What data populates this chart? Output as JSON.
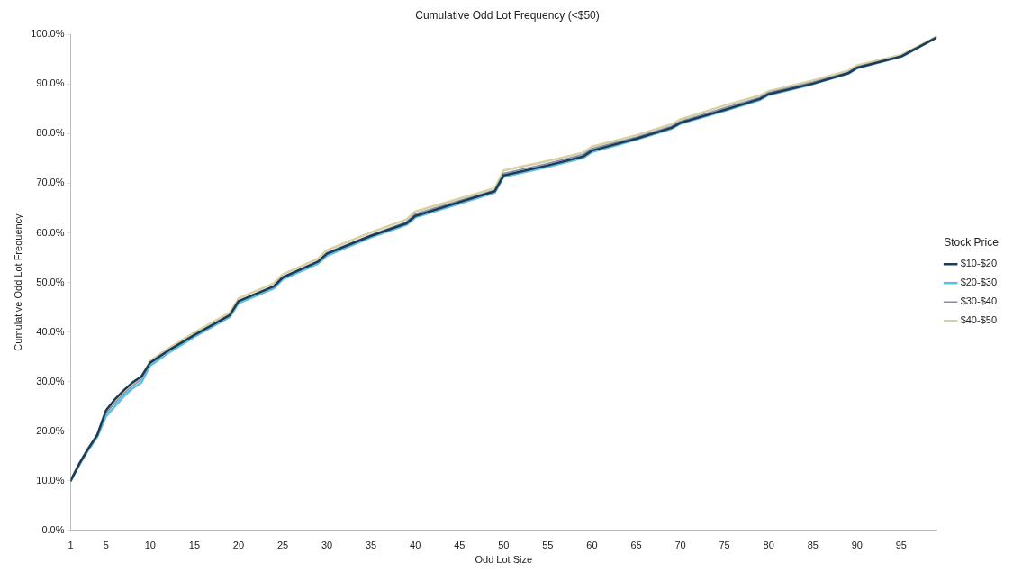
{
  "chart_data": {
    "type": "line",
    "title": "Cumulative Odd Lot Frequency (<$50)",
    "xlabel": "Odd Lot Size",
    "ylabel": "Cumulative Odd Lot Frequency",
    "legend_title": "Stock Price",
    "x": [
      1,
      2,
      3,
      4,
      5,
      6,
      7,
      8,
      9,
      10,
      12,
      15,
      19,
      20,
      24,
      25,
      29,
      30,
      35,
      39,
      40,
      45,
      49,
      50,
      55,
      59,
      60,
      65,
      69,
      70,
      75,
      79,
      80,
      85,
      89,
      90,
      95,
      99
    ],
    "series": [
      {
        "name": "$10-$20",
        "color": "#1f3a52",
        "values": [
          10,
          13.5,
          16.5,
          19.2,
          24.2,
          26.4,
          28.2,
          29.8,
          31,
          33.8,
          36.2,
          39.4,
          43.4,
          46.2,
          49.2,
          51,
          54.2,
          55.8,
          59.4,
          61.9,
          63.4,
          66.2,
          68.4,
          71.6,
          73.6,
          75.4,
          76.6,
          79,
          81.2,
          82.2,
          84.8,
          87,
          88,
          90.1,
          92.2,
          93.3,
          95.6,
          99.4
        ]
      },
      {
        "name": "$20-$30",
        "color": "#5bbfea",
        "values": [
          10,
          13.2,
          16.2,
          18.8,
          23,
          25,
          27,
          28.6,
          29.8,
          33.2,
          35.7,
          39,
          43,
          45.8,
          48.8,
          50.6,
          53.8,
          55.4,
          59.1,
          61.6,
          63.1,
          65.9,
          68.1,
          71.3,
          73.3,
          75.1,
          76.3,
          78.8,
          81,
          82,
          84.6,
          86.8,
          87.8,
          90,
          92.1,
          93.2,
          95.5,
          99.4
        ]
      },
      {
        "name": "$30-$40",
        "color": "#7f8fae",
        "values": [
          10,
          13.4,
          16.4,
          19,
          23.6,
          25.6,
          27.5,
          29.1,
          30.4,
          33.7,
          36.1,
          39.4,
          43.4,
          46.3,
          49.3,
          51.1,
          54.3,
          56,
          59.6,
          62.2,
          63.8,
          66.5,
          68.6,
          72,
          74,
          75.8,
          77,
          79.3,
          81.5,
          82.5,
          85.2,
          87.3,
          88.3,
          90.4,
          92.4,
          93.5,
          95.7,
          99.5
        ]
      },
      {
        "name": "$40-$50",
        "color": "#d9d0a2",
        "values": [
          10,
          13.6,
          16.7,
          19.3,
          23.9,
          25.9,
          27.8,
          29.4,
          30.8,
          34.2,
          36.6,
          39.9,
          43.9,
          46.8,
          49.8,
          51.6,
          54.8,
          56.5,
          60.1,
          62.7,
          64.3,
          66.9,
          69,
          72.6,
          74.5,
          76.2,
          77.4,
          79.7,
          81.9,
          82.9,
          85.7,
          87.7,
          88.6,
          90.7,
          92.7,
          93.8,
          95.9,
          99.6
        ]
      }
    ],
    "xlim": [
      1,
      99
    ],
    "xticks": [
      1,
      5,
      10,
      15,
      20,
      25,
      30,
      35,
      40,
      45,
      50,
      55,
      60,
      65,
      70,
      75,
      80,
      85,
      90,
      95
    ],
    "ylim": [
      0,
      100
    ],
    "yticks": [
      {
        "value": 0,
        "label": "0.0%"
      },
      {
        "value": 10,
        "label": "10.0%"
      },
      {
        "value": 20,
        "label": "20.0%"
      },
      {
        "value": 30,
        "label": "30.0%"
      },
      {
        "value": 40,
        "label": "40.0%"
      },
      {
        "value": 50,
        "label": "50.0%"
      },
      {
        "value": 60,
        "label": "60.0%"
      },
      {
        "value": 70,
        "label": "70.0%"
      },
      {
        "value": 80,
        "label": "80.0%"
      },
      {
        "value": 90,
        "label": "90.0%"
      },
      {
        "value": 100,
        "label": "100.0%"
      }
    ],
    "grid": false,
    "legend": "right",
    "marker": "none",
    "line_style": "solid"
  }
}
